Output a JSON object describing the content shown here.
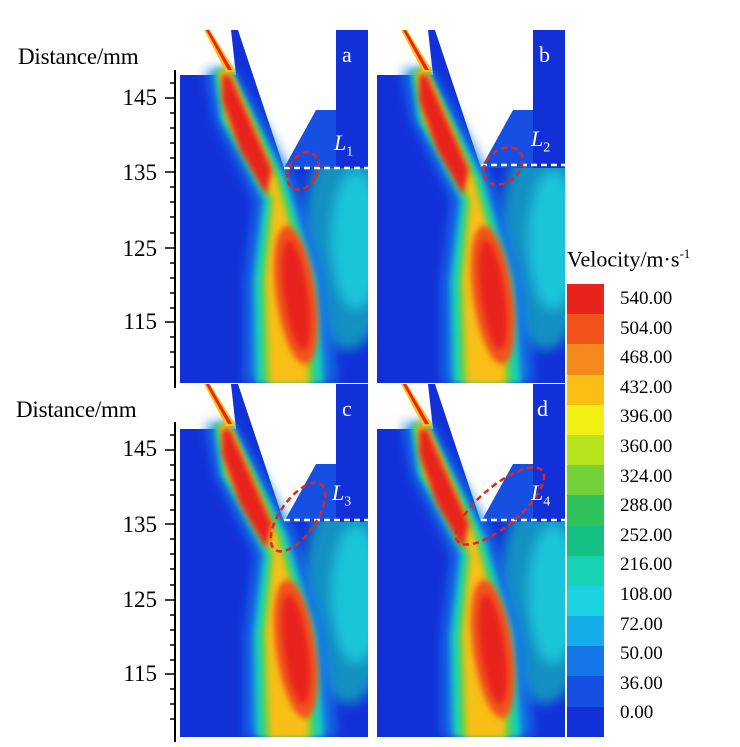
{
  "axis_title": "Distance/mm",
  "y_ticks": [
    "145",
    "135",
    "125",
    "115"
  ],
  "panels": [
    {
      "letter": "a",
      "label_main": "L",
      "label_sub": "1"
    },
    {
      "letter": "b",
      "label_main": "L",
      "label_sub": "2"
    },
    {
      "letter": "c",
      "label_main": "L",
      "label_sub": "3"
    },
    {
      "letter": "d",
      "label_main": "L",
      "label_sub": "4"
    }
  ],
  "legend": {
    "title_main": "Velocity/m·s",
    "title_sup": "-1",
    "levels": [
      {
        "value": "540.00",
        "color": "#e8231b"
      },
      {
        "value": "504.00",
        "color": "#f2521a"
      },
      {
        "value": "468.00",
        "color": "#f58a1c"
      },
      {
        "value": "432.00",
        "color": "#f9bf14"
      },
      {
        "value": "396.00",
        "color": "#f2ef12"
      },
      {
        "value": "360.00",
        "color": "#b7e21e"
      },
      {
        "value": "324.00",
        "color": "#74d13a"
      },
      {
        "value": "288.00",
        "color": "#2fc25a"
      },
      {
        "value": "252.00",
        "color": "#14c083"
      },
      {
        "value": "216.00",
        "color": "#16d1b2"
      },
      {
        "value": "108.00",
        "color": "#1bd3e0"
      },
      {
        "value": "72.00",
        "color": "#15acea"
      },
      {
        "value": "50.00",
        "color": "#1677e8"
      },
      {
        "value": "36.00",
        "color": "#1650e2"
      },
      {
        "value": "0.00",
        "color": "#1230d8"
      }
    ]
  }
}
